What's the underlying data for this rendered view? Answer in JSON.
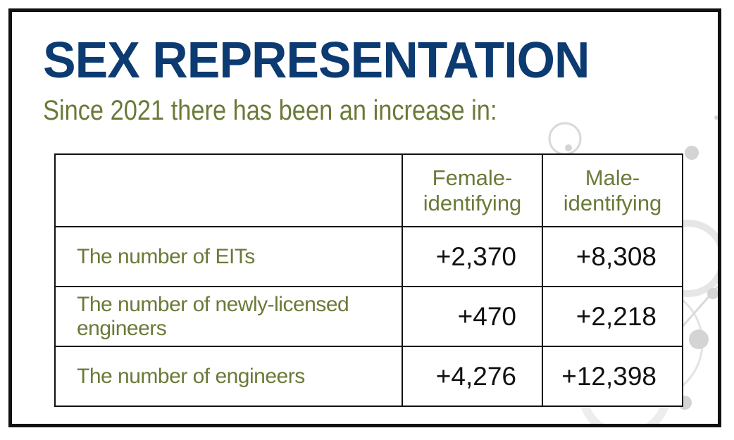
{
  "header": {
    "title": "SEX REPRESENTATION",
    "subtitle": "Since 2021 there has been an increase in:"
  },
  "table": {
    "columns": [
      "Female-identifying",
      "Male-identifying"
    ],
    "rows": [
      [
        "The number of EITs",
        "+2,370",
        "+8,308"
      ],
      [
        "The number of newly-licensed engineers",
        "+470",
        "+2,218"
      ],
      [
        "The number of engineers",
        "+4,276",
        "+12,398"
      ]
    ]
  }
}
